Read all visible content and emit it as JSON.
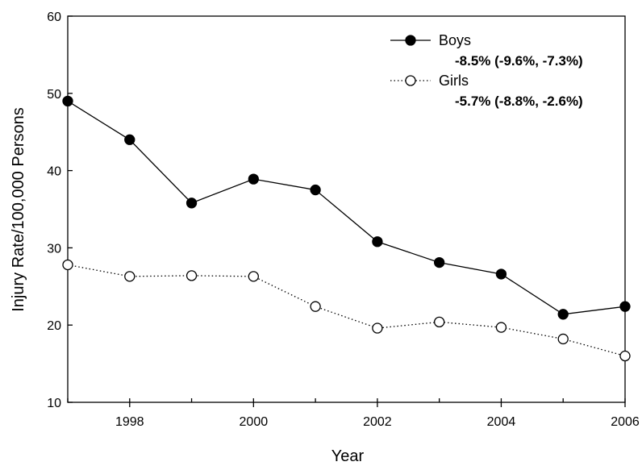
{
  "chart_data": {
    "type": "line",
    "title": "",
    "xlabel": "Year",
    "ylabel": "Injury Rate/100,000 Persons",
    "xlim": [
      1997,
      2006
    ],
    "ylim": [
      10,
      60
    ],
    "x_ticks": [
      1998,
      2000,
      2002,
      2004,
      2006
    ],
    "y_ticks": [
      10,
      20,
      30,
      40,
      50,
      60
    ],
    "x": [
      1997,
      1998,
      1999,
      2000,
      2001,
      2002,
      2003,
      2004,
      2005,
      2006
    ],
    "grid": false,
    "legend_position": "top-right",
    "series": [
      {
        "name": "Boys",
        "annotation": "-8.5% (-9.6%, -7.3%)",
        "line_style": "solid",
        "marker": "filled-circle",
        "values": [
          49.0,
          44.0,
          35.8,
          38.9,
          37.5,
          30.8,
          28.1,
          26.6,
          21.4,
          22.4
        ]
      },
      {
        "name": "Girls",
        "annotation": "-5.7% (-8.8%, -2.6%)",
        "line_style": "dotted",
        "marker": "open-circle",
        "values": [
          27.8,
          26.3,
          26.4,
          26.3,
          22.4,
          19.6,
          20.4,
          19.7,
          18.2,
          16.0
        ]
      }
    ]
  }
}
